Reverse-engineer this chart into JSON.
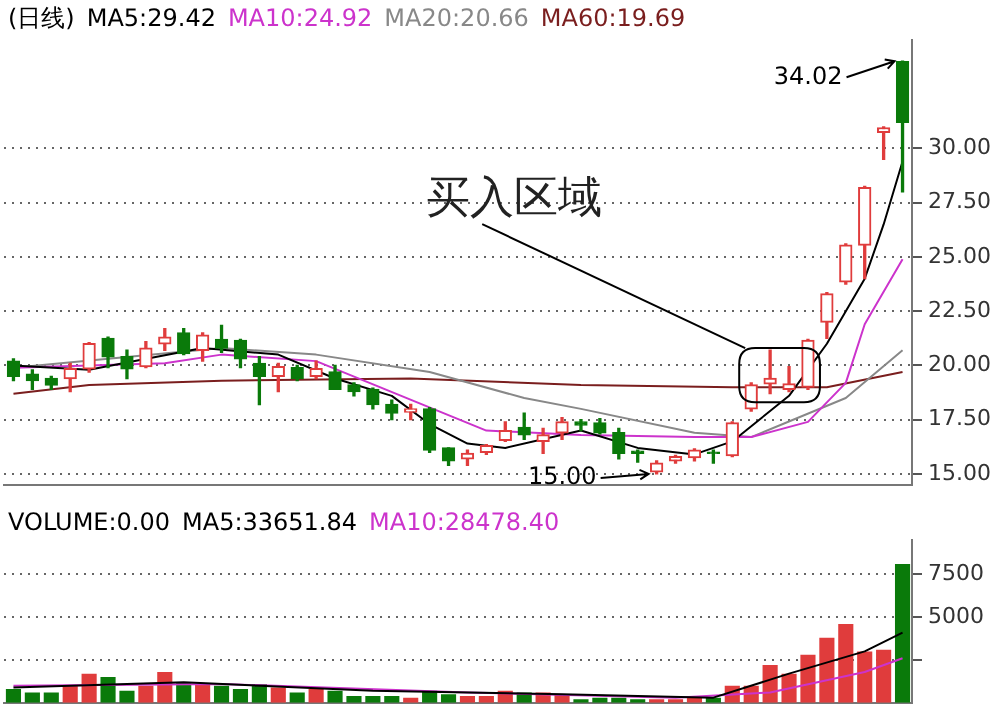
{
  "chart_data": [
    {
      "type": "candlestick",
      "title": "(日线)",
      "legend": "top left",
      "tick_labels": "y",
      "grid": "y",
      "categories": [
        null,
        null,
        null,
        null,
        null,
        null,
        null,
        null,
        null,
        null,
        null,
        null,
        null,
        null,
        null,
        null,
        null,
        null,
        null,
        null,
        null,
        null,
        null,
        null,
        null,
        null,
        null,
        null,
        null,
        null,
        null,
        null,
        null,
        null,
        null,
        null,
        null,
        null,
        null,
        null,
        null,
        null,
        null,
        null,
        null,
        null,
        null,
        null
      ],
      "ohlc": [
        [
          20.2,
          20.3,
          19.3,
          19.5
        ],
        [
          19.6,
          19.8,
          18.9,
          19.3
        ],
        [
          19.4,
          19.5,
          18.9,
          19.1
        ],
        [
          19.4,
          20.1,
          18.8,
          19.85
        ],
        [
          19.85,
          21.05,
          19.7,
          21.0
        ],
        [
          21.25,
          21.3,
          19.9,
          20.4
        ],
        [
          20.4,
          20.7,
          19.4,
          19.85
        ],
        [
          19.95,
          21.1,
          19.9,
          20.8
        ],
        [
          21.0,
          21.7,
          20.7,
          21.3
        ],
        [
          21.5,
          21.7,
          20.5,
          20.55
        ],
        [
          20.7,
          21.5,
          20.2,
          21.4
        ],
        [
          21.2,
          21.85,
          20.6,
          20.8
        ],
        [
          21.15,
          21.2,
          19.9,
          20.3
        ],
        [
          20.1,
          20.4,
          18.2,
          19.5
        ],
        [
          19.5,
          20.1,
          18.8,
          19.95
        ],
        [
          19.9,
          20.0,
          19.3,
          19.4
        ],
        [
          19.5,
          20.2,
          19.4,
          19.85
        ],
        [
          19.7,
          20.0,
          18.9,
          18.9
        ],
        [
          19.1,
          19.2,
          18.6,
          18.8
        ],
        [
          18.9,
          18.95,
          18.0,
          18.2
        ],
        [
          18.2,
          18.4,
          17.5,
          17.8
        ],
        [
          17.85,
          18.2,
          17.5,
          18.0
        ],
        [
          18.0,
          18.05,
          16.0,
          16.1
        ],
        [
          16.2,
          16.2,
          15.4,
          15.6
        ],
        [
          15.7,
          16.1,
          15.4,
          15.95
        ],
        [
          16.0,
          16.35,
          15.9,
          16.3
        ],
        [
          16.55,
          17.4,
          16.5,
          17.0
        ],
        [
          17.15,
          17.8,
          16.6,
          16.8
        ],
        [
          16.5,
          17.1,
          15.95,
          16.8
        ],
        [
          16.9,
          17.6,
          16.6,
          17.4
        ],
        [
          17.4,
          17.5,
          17.0,
          17.25
        ],
        [
          17.35,
          17.55,
          16.85,
          16.9
        ],
        [
          16.9,
          17.1,
          15.7,
          15.95
        ],
        [
          16.05,
          16.1,
          15.55,
          15.95
        ],
        [
          15.1,
          15.6,
          15.0,
          15.5
        ],
        [
          15.6,
          15.85,
          15.5,
          15.8
        ],
        [
          15.75,
          16.15,
          15.6,
          16.1
        ],
        [
          16.0,
          16.1,
          15.5,
          15.95
        ],
        [
          15.85,
          17.4,
          15.8,
          17.35
        ],
        [
          18.0,
          19.2,
          17.9,
          19.1
        ],
        [
          19.15,
          20.7,
          18.7,
          19.4
        ],
        [
          18.9,
          19.95,
          18.8,
          19.15
        ],
        [
          19.0,
          21.2,
          18.9,
          21.15
        ],
        [
          22.0,
          23.35,
          21.25,
          23.3
        ],
        [
          23.85,
          25.6,
          23.75,
          25.55
        ],
        [
          25.55,
          28.25,
          24.0,
          28.2
        ],
        [
          30.75,
          31.0,
          29.5,
          30.95
        ],
        [
          34.0,
          34.02,
          28.0,
          31.2
        ]
      ],
      "colors": [
        "#0a7a0a",
        "#0a7a0a",
        "#0a7a0a",
        "#e03c3c",
        "#e03c3c",
        "#0a7a0a",
        "#0a7a0a",
        "#e03c3c",
        "#e03c3c",
        "#0a7a0a",
        "#e03c3c",
        "#0a7a0a",
        "#0a7a0a",
        "#0a7a0a",
        "#e03c3c",
        "#0a7a0a",
        "#e03c3c",
        "#0a7a0a",
        "#0a7a0a",
        "#0a7a0a",
        "#0a7a0a",
        "#e03c3c",
        "#0a7a0a",
        "#0a7a0a",
        "#e03c3c",
        "#e03c3c",
        "#e03c3c",
        "#0a7a0a",
        "#e03c3c",
        "#e03c3c",
        "#0a7a0a",
        "#0a7a0a",
        "#0a7a0a",
        "#0a7a0a",
        "#e03c3c",
        "#e03c3c",
        "#e03c3c",
        "#0a7a0a",
        "#e03c3c",
        "#e03c3c",
        "#e03c3c",
        "#e03c3c",
        "#e03c3c",
        "#e03c3c",
        "#e03c3c",
        "#e03c3c",
        "#e03c3c",
        "#0a7a0a"
      ],
      "series": [
        {
          "type": "line",
          "name": "MA5:29.42",
          "color": "#000000",
          "values": [
            20.0,
            null,
            null,
            null,
            19.8,
            null,
            null,
            null,
            null,
            null,
            20.8,
            null,
            null,
            null,
            20.5,
            null,
            null,
            19.4,
            null,
            null,
            18.6,
            null,
            17.3,
            null,
            16.4,
            null,
            16.2,
            null,
            null,
            null,
            17.0,
            null,
            null,
            16.2,
            null,
            null,
            15.9,
            null,
            16.5,
            null,
            null,
            18.6,
            null,
            21.0,
            null,
            24.0,
            26.5,
            29.4
          ]
        },
        {
          "type": "line",
          "name": "MA10:24.92",
          "color": "#cc33cc",
          "values": [
            19.9,
            null,
            null,
            null,
            null,
            null,
            null,
            null,
            20.1,
            null,
            null,
            20.5,
            null,
            null,
            null,
            null,
            20.2,
            null,
            null,
            null,
            null,
            null,
            null,
            null,
            null,
            17.0,
            null,
            null,
            null,
            null,
            16.8,
            null,
            null,
            null,
            null,
            null,
            16.7,
            null,
            null,
            16.7,
            null,
            null,
            17.4,
            null,
            19.2,
            21.9,
            null,
            24.9
          ]
        },
        {
          "type": "line",
          "name": "MA20:20.66",
          "color": "#888888",
          "values": [
            19.9,
            null,
            null,
            null,
            null,
            null,
            null,
            null,
            null,
            null,
            null,
            20.8,
            null,
            null,
            null,
            null,
            20.5,
            null,
            null,
            null,
            null,
            null,
            19.7,
            null,
            null,
            null,
            null,
            18.5,
            null,
            null,
            18.0,
            null,
            null,
            null,
            null,
            null,
            16.9,
            null,
            null,
            16.7,
            null,
            null,
            null,
            null,
            18.5,
            null,
            null,
            20.7
          ]
        },
        {
          "type": "line",
          "name": "MA60:19.69",
          "color": "#7a1e1e",
          "values": [
            18.7,
            null,
            null,
            null,
            19.1,
            null,
            null,
            null,
            null,
            null,
            null,
            19.3,
            null,
            null,
            null,
            null,
            null,
            null,
            null,
            null,
            null,
            19.4,
            null,
            null,
            null,
            null,
            null,
            null,
            null,
            null,
            19.1,
            null,
            null,
            null,
            null,
            null,
            null,
            null,
            19.0,
            null,
            null,
            null,
            null,
            19.0,
            null,
            null,
            null,
            19.7
          ]
        }
      ],
      "ylim": [
        14.5,
        35
      ],
      "yticks": [
        {
          "value": 15,
          "label": "15.00"
        },
        {
          "value": 17.5,
          "label": "17.50"
        },
        {
          "value": 20,
          "label": "20.00"
        },
        {
          "value": 22.5,
          "label": "22.50"
        },
        {
          "value": 25,
          "label": "25.00"
        },
        {
          "value": 27.5,
          "label": "27.50"
        },
        {
          "value": 30,
          "label": "30.00"
        }
      ],
      "annotations": [
        "买入区域",
        "15.00",
        "34.02"
      ]
    },
    {
      "type": "bar",
      "title": "VOLUME:0.00",
      "legend": "top left",
      "tick_labels": "y",
      "grid": "y",
      "categories": [
        null,
        null,
        null,
        null,
        null,
        null,
        null,
        null,
        null,
        null,
        null,
        null,
        null,
        null,
        null,
        null,
        null,
        null,
        null,
        null,
        null,
        null,
        null,
        null,
        null,
        null,
        null,
        null,
        null,
        null,
        null,
        null,
        null,
        null,
        null,
        null,
        null,
        null,
        null,
        null,
        null,
        null,
        null,
        null,
        null,
        null,
        null,
        null
      ],
      "values": [
        800,
        600,
        600,
        1000,
        1700,
        1500,
        700,
        1000,
        1800,
        1200,
        1100,
        1000,
        800,
        1100,
        900,
        600,
        800,
        700,
        400,
        400,
        400,
        300,
        700,
        500,
        400,
        400,
        700,
        600,
        600,
        500,
        200,
        300,
        300,
        200,
        200,
        200,
        300,
        300,
        1000,
        1000,
        2200,
        1700,
        2800,
        3800,
        4600,
        3000,
        3100,
        8100
      ],
      "colors": [
        "#0a7a0a",
        "#0a7a0a",
        "#0a7a0a",
        "#e03c3c",
        "#e03c3c",
        "#0a7a0a",
        "#0a7a0a",
        "#e03c3c",
        "#e03c3c",
        "#0a7a0a",
        "#e03c3c",
        "#0a7a0a",
        "#0a7a0a",
        "#0a7a0a",
        "#e03c3c",
        "#0a7a0a",
        "#e03c3c",
        "#0a7a0a",
        "#0a7a0a",
        "#0a7a0a",
        "#0a7a0a",
        "#e03c3c",
        "#0a7a0a",
        "#0a7a0a",
        "#e03c3c",
        "#e03c3c",
        "#e03c3c",
        "#0a7a0a",
        "#e03c3c",
        "#e03c3c",
        "#0a7a0a",
        "#0a7a0a",
        "#0a7a0a",
        "#0a7a0a",
        "#e03c3c",
        "#e03c3c",
        "#e03c3c",
        "#0a7a0a",
        "#e03c3c",
        "#e03c3c",
        "#e03c3c",
        "#e03c3c",
        "#e03c3c",
        "#e03c3c",
        "#e03c3c",
        "#e03c3c",
        "#e03c3c",
        "#0a7a0a"
      ],
      "series": [
        {
          "type": "line",
          "name": "MA5:33651.84",
          "color": "#000000",
          "values": [
            900,
            null,
            null,
            null,
            null,
            null,
            null,
            null,
            null,
            1200,
            null,
            null,
            null,
            null,
            null,
            null,
            null,
            null,
            null,
            700,
            null,
            null,
            null,
            null,
            null,
            null,
            null,
            null,
            null,
            500,
            null,
            null,
            null,
            null,
            null,
            null,
            null,
            300,
            null,
            null,
            null,
            1700,
            null,
            null,
            null,
            3000,
            null,
            4100
          ]
        },
        {
          "type": "line",
          "name": "MA10:28478.40",
          "color": "#cc33cc",
          "values": [
            1000,
            null,
            null,
            null,
            null,
            null,
            null,
            null,
            null,
            null,
            null,
            1100,
            null,
            null,
            null,
            null,
            null,
            null,
            null,
            null,
            null,
            null,
            null,
            null,
            600,
            null,
            null,
            null,
            null,
            null,
            null,
            null,
            null,
            null,
            null,
            300,
            null,
            null,
            null,
            null,
            600,
            null,
            null,
            null,
            null,
            1800,
            null,
            2600
          ]
        }
      ],
      "ylim": [
        0,
        9500
      ],
      "yticks": [
        {
          "value": 2500,
          "label": null
        },
        5000,
        7500
      ]
    }
  ]
}
